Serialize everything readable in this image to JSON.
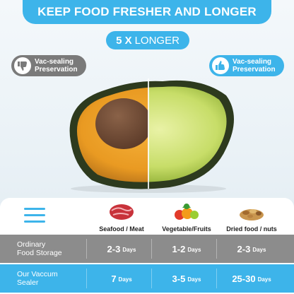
{
  "header": {
    "title": "KEEP FOOD FRESHER AND LONGER"
  },
  "subtitle": {
    "number": "5 X",
    "text": "LONGER"
  },
  "badges": {
    "left": {
      "line1": "Vac-sealing",
      "line2": "Preservation",
      "icon": "thumbs-down-icon",
      "color": "#7a7a7a"
    },
    "right": {
      "line1": "Vac-sealing",
      "line2": "Preservation",
      "icon": "thumbs-up-icon",
      "color": "#3db4ea"
    }
  },
  "table": {
    "columns": [
      {
        "label": "Seafood / Meat",
        "icon": "meat-icon"
      },
      {
        "label": "Vegetable/Fruits",
        "icon": "vegetables-icon"
      },
      {
        "label": "Dried food / nuts",
        "icon": "nuts-icon"
      }
    ],
    "rows": [
      {
        "label_line1": "Ordinary",
        "label_line2": "Food Storage",
        "color": "#8c8c8c",
        "cells": [
          {
            "value": "2-3",
            "unit": "Days"
          },
          {
            "value": "1-2",
            "unit": "Days"
          },
          {
            "value": "2-3",
            "unit": "Days"
          }
        ]
      },
      {
        "label_line1": "Our Vaccum",
        "label_line2": "Sealer",
        "color": "#3db4ea",
        "cells": [
          {
            "value": "7",
            "unit": "Days"
          },
          {
            "value": "3-5",
            "unit": "Days"
          },
          {
            "value": "25-30",
            "unit": "Days"
          }
        ]
      }
    ]
  }
}
